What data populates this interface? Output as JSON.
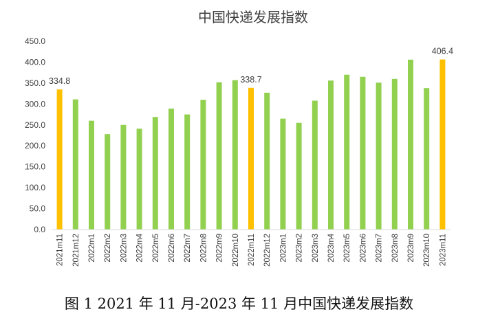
{
  "chart_data": {
    "type": "bar",
    "title": "中国快递发展指数",
    "categories": [
      "2021m11",
      "2021m12",
      "2022m1",
      "2022m2",
      "2022m3",
      "2022m4",
      "2022m5",
      "2022m6",
      "2022m7",
      "2022m8",
      "2022m9",
      "2022m10",
      "2022m11",
      "2022m12",
      "2023m1",
      "2023m2",
      "2023m3",
      "2023m4",
      "2023m5",
      "2023m6",
      "2023m7",
      "2023m8",
      "2023m9",
      "2023m10",
      "2023m11"
    ],
    "values": [
      334.8,
      311,
      260,
      228,
      250,
      241,
      269,
      289,
      275,
      310,
      352,
      357,
      338.7,
      327,
      265,
      255,
      308,
      356,
      370,
      365,
      351,
      360,
      406,
      338,
      406.4
    ],
    "highlight_indices": [
      0,
      12,
      24
    ],
    "data_labels": [
      {
        "index": 0,
        "text": "334.8"
      },
      {
        "index": 12,
        "text": "338.7"
      },
      {
        "index": 24,
        "text": "406.4"
      }
    ],
    "ylim": [
      0,
      450
    ],
    "yticks": [
      "0.0",
      "50.0",
      "100.0",
      "150.0",
      "200.0",
      "250.0",
      "300.0",
      "350.0",
      "400.0",
      "450.0"
    ],
    "xlabel": "",
    "ylabel": "",
    "grid": false,
    "legend": "none",
    "colors": {
      "bar": "#92d050",
      "highlight": "#ffc000",
      "axis": "#d9d9d9",
      "text": "#404040"
    }
  },
  "caption": "图 1 2021 年 11 月-2023 年 11 月中国快递发展指数"
}
